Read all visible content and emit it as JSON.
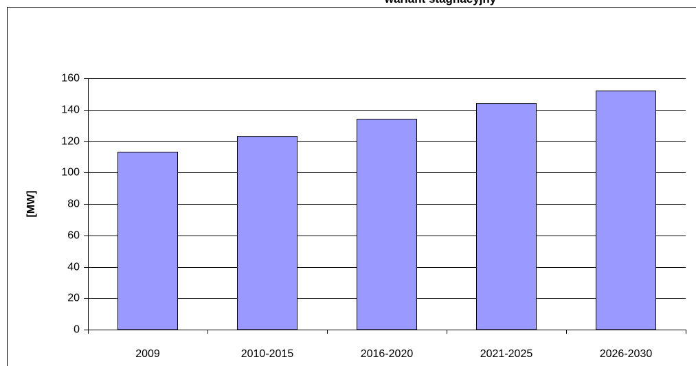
{
  "chart_data": {
    "type": "bar",
    "title": "wariant stagnacyjny",
    "y_label": "[MW]",
    "categories": [
      "2009",
      "2010-2015",
      "2016-2020",
      "2021-2025",
      "2026-2030"
    ],
    "values": [
      113,
      123,
      134,
      144,
      152
    ],
    "color": "#9999ff",
    "ylim": [
      0,
      160
    ],
    "yticks": [
      0,
      20,
      40,
      60,
      80,
      100,
      120,
      140,
      160
    ],
    "grid": true
  }
}
